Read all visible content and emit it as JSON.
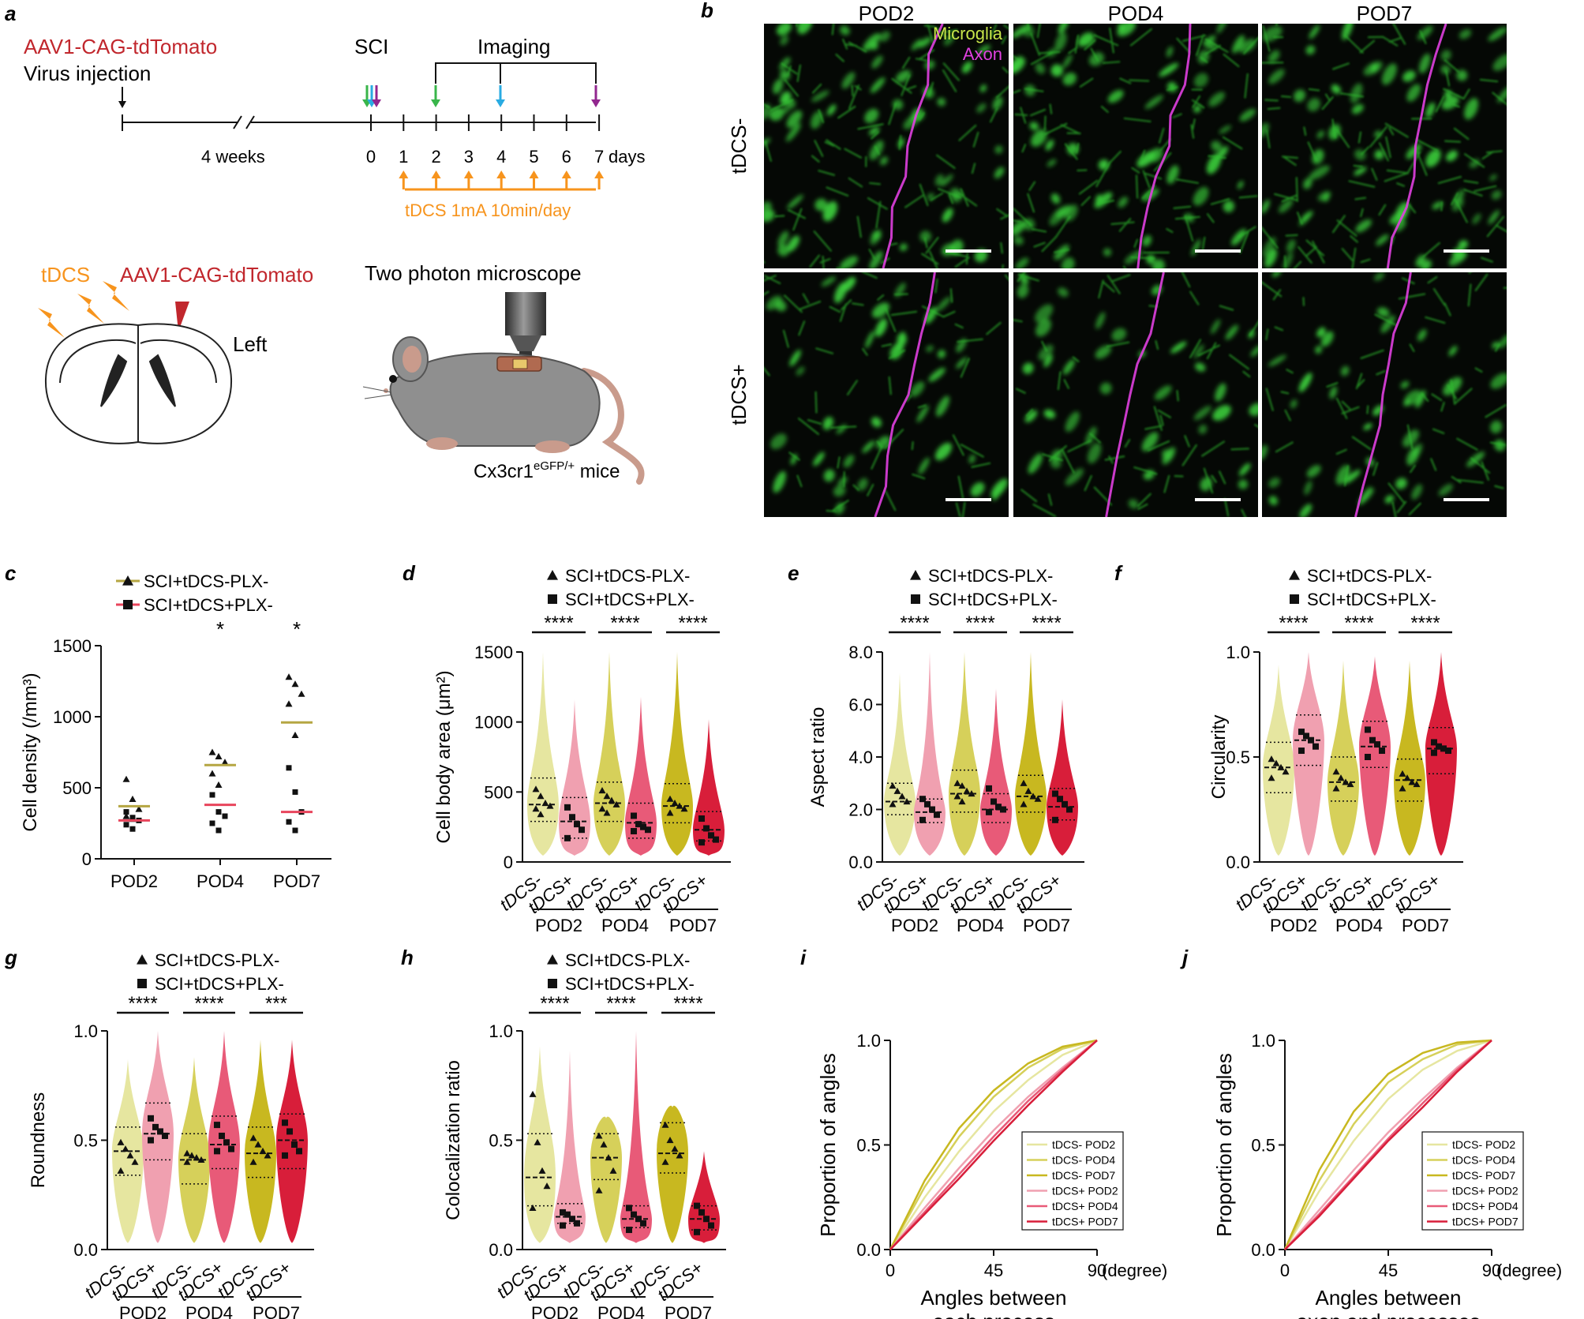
{
  "panel_a": {
    "letter": "a",
    "virus_label": "AAV1-CAG-tdTomato",
    "virus_sub": "Virus injection",
    "sci_label": "SCI",
    "imaging_label": "Imaging",
    "gap_label": "4 weeks",
    "day_ticks": [
      "0",
      "1",
      "2",
      "3",
      "4",
      "5",
      "6",
      "7"
    ],
    "days_unit": "days",
    "tdcs_protocol": "tDCS 1mA 10min/day",
    "tdcs_label": "tDCS",
    "aav_label2": "AAV1-CAG-tdTomato",
    "left_label": "Left",
    "microscope_label": "Two photon microscope",
    "mouse_label_main": "Cx3cr1",
    "mouse_label_sup": "eGFP/+",
    "mouse_label_end": " mice",
    "colors": {
      "red": "#c1272d",
      "orange": "#f7941d",
      "green": "#39b54a",
      "blue": "#29abe2",
      "purple": "#92278f"
    }
  },
  "panel_b": {
    "letter": "b",
    "columns": [
      "POD2",
      "POD4",
      "POD7"
    ],
    "rows": [
      "tDCS-",
      "tDCS+"
    ],
    "legend_microglia": "Microglia",
    "legend_axon": "Axon",
    "colors": {
      "microglia": "#c8e64a",
      "axon": "#e040e0"
    }
  },
  "panel_c": {
    "letter": "c",
    "legend": [
      "SCI+tDCS-PLX-",
      "SCI+tDCS+PLX-"
    ],
    "ylabel": "Cell density (/mm³)",
    "yticks": [
      "0",
      "500",
      "1000",
      "1500"
    ],
    "categories": [
      "POD2",
      "POD4",
      "POD7"
    ],
    "sig": [
      "",
      "*",
      "*"
    ]
  },
  "violin_panels": [
    {
      "letter": "d",
      "ylabel": "Cell body area (μm²)",
      "yticks": [
        "0",
        "500",
        "1000",
        "1500"
      ],
      "sig": [
        "****",
        "****",
        "****"
      ],
      "legend": [
        "SCI+tDCS-PLX-",
        "SCI+tDCS+PLX-"
      ],
      "groups": [
        "POD2",
        "POD4",
        "POD7"
      ],
      "xcats": [
        "tDCS-",
        "tDCS+"
      ]
    },
    {
      "letter": "e",
      "ylabel": "Aspect ratio",
      "yticks": [
        "0.0",
        "2.0",
        "4.0",
        "6.0",
        "8.0"
      ],
      "sig": [
        "****",
        "****",
        "****"
      ],
      "legend": [
        "SCI+tDCS-PLX-",
        "SCI+tDCS+PLX-"
      ],
      "groups": [
        "POD2",
        "POD4",
        "POD7"
      ],
      "xcats": [
        "tDCS-",
        "tDCS+"
      ]
    },
    {
      "letter": "f",
      "ylabel": "Circularity",
      "yticks": [
        "0.0",
        "0.5",
        "1.0"
      ],
      "sig": [
        "****",
        "****",
        "****"
      ],
      "legend": [
        "SCI+tDCS-PLX-",
        "SCI+tDCS+PLX-"
      ],
      "groups": [
        "POD2",
        "POD4",
        "POD7"
      ],
      "xcats": [
        "tDCS-",
        "tDCS+"
      ]
    },
    {
      "letter": "g",
      "ylabel": "Roundness",
      "yticks": [
        "0.0",
        "0.5",
        "1.0"
      ],
      "sig": [
        "****",
        "****",
        "***"
      ],
      "legend": [
        "SCI+tDCS-PLX-",
        "SCI+tDCS+PLX-"
      ],
      "groups": [
        "POD2",
        "POD4",
        "POD7"
      ],
      "xcats": [
        "tDCS-",
        "tDCS+"
      ]
    },
    {
      "letter": "h",
      "ylabel": "Colocalization ratio",
      "yticks": [
        "0.0",
        "0.5",
        "1.0"
      ],
      "sig": [
        "****",
        "****",
        "****"
      ],
      "legend": [
        "SCI+tDCS-PLX-",
        "SCI+tDCS+PLX-"
      ],
      "groups": [
        "POD2",
        "POD4",
        "POD7"
      ],
      "xcats": [
        "tDCS-",
        "tDCS+"
      ]
    }
  ],
  "cdf_panels": [
    {
      "letter": "i",
      "ylabel": "Proportion of angles",
      "xlabel1": "Angles between",
      "xlabel2": "each process",
      "xticks": [
        "0",
        "45",
        "90"
      ],
      "xunit": "(degree)",
      "yticks": [
        "0.0",
        "0.5",
        "1.0"
      ]
    },
    {
      "letter": "j",
      "ylabel": "Proportion of angles",
      "xlabel1": "Angles between",
      "xlabel2": "axon and processes",
      "xticks": [
        "0",
        "45",
        "90"
      ],
      "xunit": "(degree)",
      "yticks": [
        "0.0",
        "0.5",
        "1.0"
      ]
    }
  ],
  "cdf_legend": [
    "tDCS- POD2",
    "tDCS- POD4",
    "tDCS- POD7",
    "tDCS+ POD2",
    "tDCS+ POD4",
    "tDCS+ POD7"
  ],
  "series_colors": [
    "#e6e6a0",
    "#d6d05a",
    "#c8b820",
    "#f0a0b0",
    "#e85a78",
    "#d81e3a"
  ],
  "mean_colors": {
    "minus": "#b5a642",
    "plus": "#e8455c"
  },
  "chart_data": [
    {
      "panel": "c",
      "type": "scatter",
      "categories": [
        "POD2",
        "POD4",
        "POD7"
      ],
      "ylabel": "Cell density (/mm³)",
      "ylim": [
        0,
        1500
      ],
      "series": [
        {
          "name": "SCI+tDCS-PLX-",
          "marker": "triangle",
          "values": [
            [
              560,
              420,
              350,
              300,
              280
            ],
            [
              750,
              720,
              680,
              600,
              520
            ],
            [
              1280,
              1230,
              1160,
              1090,
              870
            ]
          ],
          "means": [
            370,
            660,
            960
          ]
        },
        {
          "name": "SCI+tDCS+PLX-",
          "marker": "square",
          "values": [
            [
              330,
              290,
              270,
              240,
              210
            ],
            [
              450,
              330,
              300,
              250,
              200
            ],
            [
              640,
              470,
              330,
              260,
              200
            ]
          ],
          "means": [
            270,
            380,
            330
          ]
        }
      ]
    },
    {
      "panel": "d",
      "type": "violin",
      "ylabel": "Cell body area (μm²)",
      "ylim": [
        0,
        1500
      ],
      "groups": [
        "POD2",
        "POD4",
        "POD7"
      ],
      "violins": [
        {
          "group": "POD2",
          "cond": "tDCS-",
          "median": 410,
          "q1": 290,
          "q3": 600,
          "max": 1500,
          "points": [
            520,
            470,
            420,
            400,
            380,
            340
          ]
        },
        {
          "group": "POD2",
          "cond": "tDCS+",
          "median": 290,
          "q1": 170,
          "q3": 460,
          "max": 1160,
          "points": [
            390,
            320,
            270,
            230,
            170
          ]
        },
        {
          "group": "POD4",
          "cond": "tDCS-",
          "median": 420,
          "q1": 290,
          "q3": 570,
          "max": 1500,
          "points": [
            510,
            470,
            440,
            410,
            380,
            350
          ]
        },
        {
          "group": "POD4",
          "cond": "tDCS+",
          "median": 280,
          "q1": 170,
          "q3": 420,
          "max": 1180,
          "points": [
            330,
            270,
            250,
            230,
            220
          ]
        },
        {
          "group": "POD7",
          "cond": "tDCS-",
          "median": 400,
          "q1": 280,
          "q3": 560,
          "max": 1500,
          "points": [
            450,
            420,
            400,
            380,
            350
          ]
        },
        {
          "group": "POD7",
          "cond": "tDCS+",
          "median": 230,
          "q1": 150,
          "q3": 360,
          "max": 1020,
          "points": [
            310,
            240,
            190,
            160,
            140
          ]
        }
      ]
    },
    {
      "panel": "e",
      "type": "violin",
      "ylabel": "Aspect ratio",
      "ylim": [
        0,
        8
      ],
      "groups": [
        "POD2",
        "POD4",
        "POD7"
      ],
      "violins": [
        {
          "group": "POD2",
          "cond": "tDCS-",
          "median": 2.3,
          "q1": 1.8,
          "q3": 3.0,
          "max": 7.2,
          "points": [
            2.9,
            2.7,
            2.5,
            2.3,
            2.2
          ]
        },
        {
          "group": "POD2",
          "cond": "tDCS+",
          "median": 1.9,
          "q1": 1.5,
          "q3": 2.4,
          "max": 8.0,
          "points": [
            2.4,
            2.2,
            2.0,
            1.8,
            1.6
          ]
        },
        {
          "group": "POD4",
          "cond": "tDCS-",
          "median": 2.6,
          "q1": 1.9,
          "q3": 3.5,
          "max": 8.0,
          "points": [
            3.0,
            2.9,
            2.7,
            2.6,
            2.5,
            2.3
          ]
        },
        {
          "group": "POD4",
          "cond": "tDCS+",
          "median": 2.0,
          "q1": 1.5,
          "q3": 2.6,
          "max": 6.6,
          "points": [
            2.8,
            2.3,
            2.1,
            2.0,
            1.9
          ]
        },
        {
          "group": "POD7",
          "cond": "tDCS-",
          "median": 2.5,
          "q1": 1.9,
          "q3": 3.3,
          "max": 8.0,
          "points": [
            3.0,
            2.7,
            2.5,
            2.4,
            2.2
          ]
        },
        {
          "group": "POD7",
          "cond": "tDCS+",
          "median": 2.1,
          "q1": 1.6,
          "q3": 2.8,
          "max": 6.2,
          "points": [
            2.6,
            2.4,
            2.2,
            2.0,
            1.6
          ]
        }
      ]
    },
    {
      "panel": "f",
      "type": "violin",
      "ylabel": "Circularity",
      "ylim": [
        0,
        1
      ],
      "groups": [
        "POD2",
        "POD4",
        "POD7"
      ],
      "violins": [
        {
          "group": "POD2",
          "cond": "tDCS-",
          "median": 0.45,
          "q1": 0.33,
          "q3": 0.57,
          "max": 0.94,
          "points": [
            0.49,
            0.47,
            0.45,
            0.43,
            0.4
          ]
        },
        {
          "group": "POD2",
          "cond": "tDCS+",
          "median": 0.58,
          "q1": 0.46,
          "q3": 0.7,
          "max": 1.0,
          "points": [
            0.62,
            0.6,
            0.58,
            0.55,
            0.53
          ]
        },
        {
          "group": "POD4",
          "cond": "tDCS-",
          "median": 0.38,
          "q1": 0.29,
          "q3": 0.5,
          "max": 0.96,
          "points": [
            0.43,
            0.4,
            0.38,
            0.37,
            0.35
          ]
        },
        {
          "group": "POD4",
          "cond": "tDCS+",
          "median": 0.55,
          "q1": 0.45,
          "q3": 0.67,
          "max": 0.98,
          "points": [
            0.63,
            0.58,
            0.56,
            0.53,
            0.5
          ]
        },
        {
          "group": "POD7",
          "cond": "tDCS-",
          "median": 0.39,
          "q1": 0.29,
          "q3": 0.49,
          "max": 0.96,
          "points": [
            0.42,
            0.4,
            0.38,
            0.37,
            0.35
          ]
        },
        {
          "group": "POD7",
          "cond": "tDCS+",
          "median": 0.54,
          "q1": 0.42,
          "q3": 0.64,
          "max": 1.0,
          "points": [
            0.57,
            0.55,
            0.54,
            0.53,
            0.52
          ]
        }
      ]
    },
    {
      "panel": "g",
      "type": "violin",
      "ylabel": "Roundness",
      "ylim": [
        0,
        1
      ],
      "groups": [
        "POD2",
        "POD4",
        "POD7"
      ],
      "violins": [
        {
          "group": "POD2",
          "cond": "tDCS-",
          "median": 0.45,
          "q1": 0.34,
          "q3": 0.56,
          "max": 0.87,
          "points": [
            0.49,
            0.46,
            0.43,
            0.4,
            0.36
          ]
        },
        {
          "group": "POD2",
          "cond": "tDCS+",
          "median": 0.53,
          "q1": 0.41,
          "q3": 0.67,
          "max": 1.0,
          "points": [
            0.6,
            0.56,
            0.54,
            0.52,
            0.5
          ]
        },
        {
          "group": "POD4",
          "cond": "tDCS-",
          "median": 0.41,
          "q1": 0.3,
          "q3": 0.53,
          "max": 0.88,
          "points": [
            0.44,
            0.43,
            0.42,
            0.41,
            0.4
          ]
        },
        {
          "group": "POD4",
          "cond": "tDCS+",
          "median": 0.48,
          "q1": 0.37,
          "q3": 0.61,
          "max": 1.0,
          "points": [
            0.57,
            0.52,
            0.49,
            0.46,
            0.45
          ]
        },
        {
          "group": "POD7",
          "cond": "tDCS-",
          "median": 0.44,
          "q1": 0.33,
          "q3": 0.56,
          "max": 0.96,
          "points": [
            0.51,
            0.48,
            0.45,
            0.43,
            0.4
          ]
        },
        {
          "group": "POD7",
          "cond": "tDCS+",
          "median": 0.5,
          "q1": 0.37,
          "q3": 0.62,
          "max": 0.96,
          "points": [
            0.58,
            0.54,
            0.48,
            0.45,
            0.43
          ]
        }
      ]
    },
    {
      "panel": "h",
      "type": "violin",
      "ylabel": "Colocalization ratio",
      "ylim": [
        0,
        1
      ],
      "groups": [
        "POD2",
        "POD4",
        "POD7"
      ],
      "violins": [
        {
          "group": "POD2",
          "cond": "tDCS-",
          "median": 0.33,
          "q1": 0.2,
          "q3": 0.53,
          "max": 0.93,
          "points": [
            0.71,
            0.49,
            0.36,
            0.29,
            0.19
          ]
        },
        {
          "group": "POD2",
          "cond": "tDCS+",
          "median": 0.15,
          "q1": 0.12,
          "q3": 0.21,
          "max": 0.91,
          "points": [
            0.17,
            0.16,
            0.14,
            0.12,
            0.11
          ]
        },
        {
          "group": "POD4",
          "cond": "tDCS-",
          "median": 0.42,
          "q1": 0.32,
          "q3": 0.53,
          "max": 0.6,
          "points": [
            0.52,
            0.48,
            0.42,
            0.36,
            0.27
          ]
        },
        {
          "group": "POD4",
          "cond": "tDCS+",
          "median": 0.14,
          "q1": 0.1,
          "q3": 0.2,
          "max": 1.0,
          "points": [
            0.19,
            0.16,
            0.14,
            0.12,
            0.09
          ]
        },
        {
          "group": "POD7",
          "cond": "tDCS-",
          "median": 0.44,
          "q1": 0.35,
          "q3": 0.58,
          "max": 0.65,
          "points": [
            0.57,
            0.5,
            0.46,
            0.43,
            0.4
          ]
        },
        {
          "group": "POD7",
          "cond": "tDCS+",
          "median": 0.14,
          "q1": 0.09,
          "q3": 0.2,
          "max": 0.45,
          "points": [
            0.2,
            0.17,
            0.14,
            0.11,
            0.08
          ]
        }
      ]
    },
    {
      "panel": "i",
      "type": "line",
      "xlim": [
        0,
        90
      ],
      "ylim": [
        0,
        1
      ],
      "x": [
        0,
        15,
        30,
        45,
        60,
        75,
        90
      ],
      "series": [
        {
          "name": "tDCS- POD2",
          "values": [
            0,
            0.25,
            0.47,
            0.66,
            0.81,
            0.93,
            1.0
          ]
        },
        {
          "name": "tDCS- POD4",
          "values": [
            0,
            0.3,
            0.54,
            0.73,
            0.87,
            0.96,
            1.0
          ]
        },
        {
          "name": "tDCS- POD7",
          "values": [
            0,
            0.33,
            0.58,
            0.76,
            0.89,
            0.97,
            1.0
          ]
        },
        {
          "name": "tDCS+ POD2",
          "values": [
            0,
            0.2,
            0.39,
            0.57,
            0.73,
            0.87,
            1.0
          ]
        },
        {
          "name": "tDCS+ POD4",
          "values": [
            0,
            0.18,
            0.36,
            0.54,
            0.71,
            0.86,
            1.0
          ]
        },
        {
          "name": "tDCS+ POD7",
          "values": [
            0,
            0.17,
            0.34,
            0.52,
            0.69,
            0.85,
            1.0
          ]
        }
      ]
    },
    {
      "panel": "j",
      "type": "line",
      "xlim": [
        0,
        90
      ],
      "ylim": [
        0,
        1
      ],
      "x": [
        0,
        15,
        30,
        45,
        60,
        75,
        90
      ],
      "series": [
        {
          "name": "tDCS- POD2",
          "values": [
            0,
            0.28,
            0.52,
            0.72,
            0.86,
            0.95,
            1.0
          ]
        },
        {
          "name": "tDCS- POD4",
          "values": [
            0,
            0.33,
            0.6,
            0.8,
            0.91,
            0.98,
            1.0
          ]
        },
        {
          "name": "tDCS- POD7",
          "values": [
            0,
            0.38,
            0.66,
            0.84,
            0.94,
            0.99,
            1.0
          ]
        },
        {
          "name": "tDCS+ POD2",
          "values": [
            0,
            0.19,
            0.38,
            0.56,
            0.72,
            0.87,
            1.0
          ]
        },
        {
          "name": "tDCS+ POD4",
          "values": [
            0,
            0.17,
            0.35,
            0.53,
            0.7,
            0.86,
            1.0
          ]
        },
        {
          "name": "tDCS+ POD7",
          "values": [
            0,
            0.16,
            0.34,
            0.52,
            0.68,
            0.85,
            1.0
          ]
        }
      ]
    }
  ]
}
